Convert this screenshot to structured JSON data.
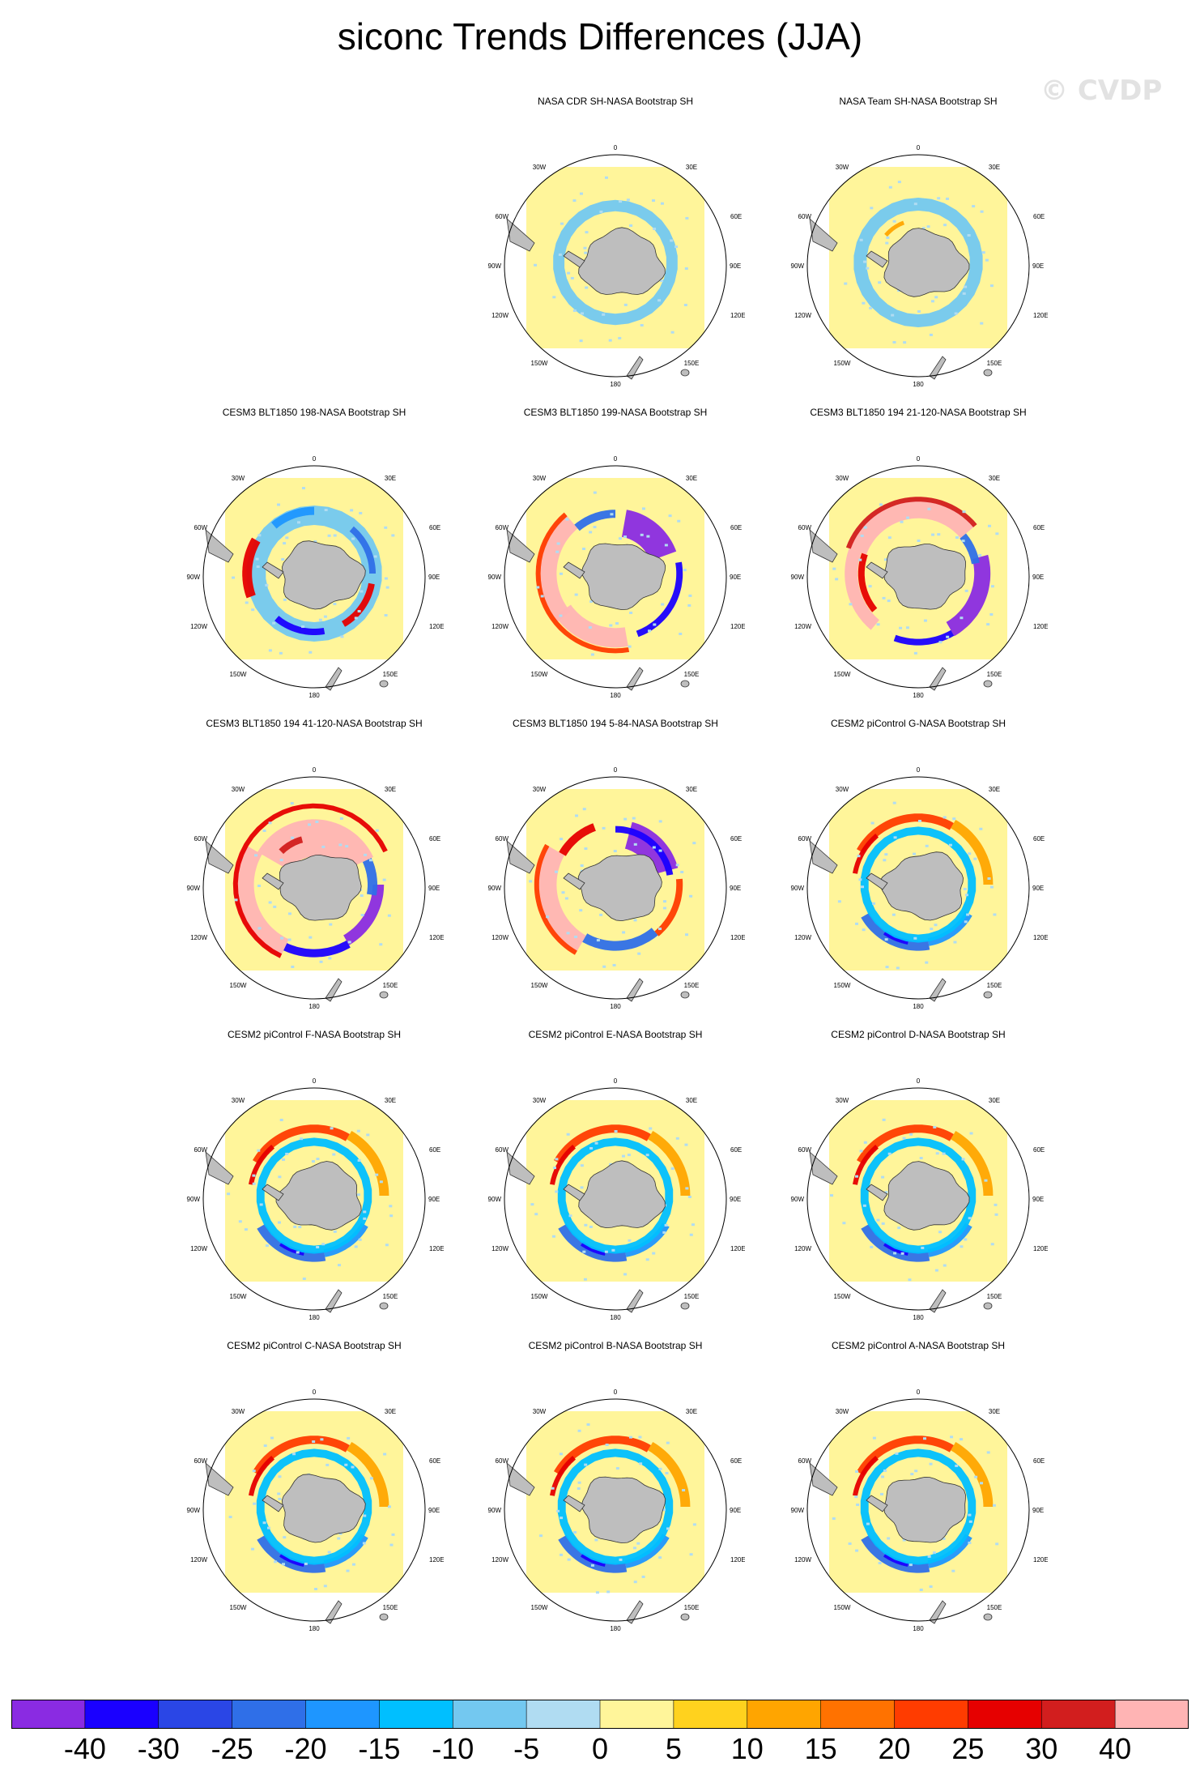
{
  "title": "siconc Trends Differences (JJA)",
  "watermark": "© CVDP",
  "lon_labels": {
    "top": "0",
    "top_left": "30W",
    "top_right": "30E",
    "upper_left": "60W",
    "upper_right": "60E",
    "left": "90W",
    "right": "90E",
    "lower_left": "120W",
    "lower_right": "120E",
    "bottom_left": "150W",
    "bottom_right": "150E",
    "bottom": "180"
  },
  "panels": [
    {
      "title": "NASA CDR SH-NASA Bootstrap SH",
      "row": 0,
      "col": 1,
      "pattern": "obs1"
    },
    {
      "title": "NASA Team SH-NASA Bootstrap SH",
      "row": 0,
      "col": 2,
      "pattern": "obs2"
    },
    {
      "title": "CESM3 BLT1850 198-NASA Bootstrap SH",
      "row": 1,
      "col": 0,
      "pattern": "m198"
    },
    {
      "title": "CESM3 BLT1850 199-NASA Bootstrap SH",
      "row": 1,
      "col": 1,
      "pattern": "m199"
    },
    {
      "title": "CESM3 BLT1850 194 21-120-NASA Bootstrap SH",
      "row": 1,
      "col": 2,
      "pattern": "m194a"
    },
    {
      "title": "CESM3 BLT1850 194 41-120-NASA Bootstrap SH",
      "row": 2,
      "col": 0,
      "pattern": "m194b"
    },
    {
      "title": "CESM3 BLT1850 194 5-84-NASA Bootstrap SH",
      "row": 2,
      "col": 1,
      "pattern": "m194c"
    },
    {
      "title": "CESM2 piControl G-NASA Bootstrap SH",
      "row": 2,
      "col": 2,
      "pattern": "pic"
    },
    {
      "title": "CESM2 piControl F-NASA Bootstrap SH",
      "row": 3,
      "col": 0,
      "pattern": "pic"
    },
    {
      "title": "CESM2 piControl E-NASA Bootstrap SH",
      "row": 3,
      "col": 1,
      "pattern": "pic"
    },
    {
      "title": "CESM2 piControl D-NASA Bootstrap SH",
      "row": 3,
      "col": 2,
      "pattern": "pic"
    },
    {
      "title": "CESM2 piControl C-NASA Bootstrap SH",
      "row": 4,
      "col": 0,
      "pattern": "pic"
    },
    {
      "title": "CESM2 piControl B-NASA Bootstrap SH",
      "row": 4,
      "col": 1,
      "pattern": "pic"
    },
    {
      "title": "CESM2 piControl A-NASA Bootstrap SH",
      "row": 4,
      "col": 2,
      "pattern": "pic"
    }
  ],
  "colorbar": {
    "colors": [
      "#8a2be2",
      "#1a00ff",
      "#2a46e6",
      "#2f6fe8",
      "#1e96ff",
      "#00bfff",
      "#73c8f0",
      "#b0dcf2",
      "#fff59a",
      "#ffd21e",
      "#ffa500",
      "#ff7200",
      "#ff3c00",
      "#e60000",
      "#d21e1e",
      "#ffb4b4"
    ],
    "labels": [
      "-40",
      "-30",
      "-25",
      "-20",
      "-15",
      "-10",
      "-5",
      "0",
      "5",
      "10",
      "15",
      "20",
      "25",
      "30",
      "40"
    ]
  },
  "land_color": "#bebebe",
  "background_color": "#fff59a"
}
